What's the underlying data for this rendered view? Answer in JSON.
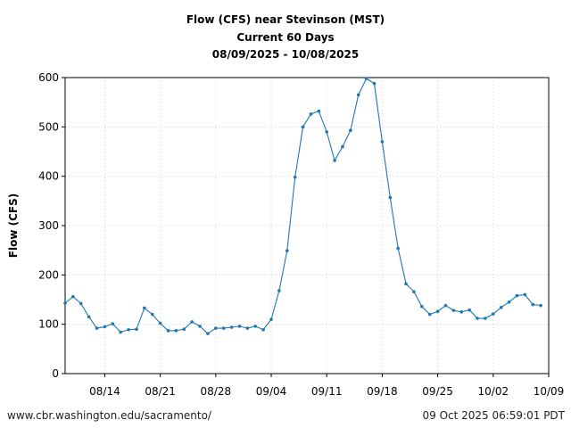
{
  "chart_data": {
    "type": "line",
    "title_lines": [
      "Flow (CFS) near Stevinson (MST)",
      "Current 60 Days",
      "08/09/2025 - 10/08/2025"
    ],
    "ylabel": "Flow (CFS)",
    "xlabel": "",
    "ylim": [
      0,
      600
    ],
    "yticks": [
      0,
      100,
      200,
      300,
      400,
      500,
      600
    ],
    "xlim": [
      "08/09/2025",
      "10/09/2025"
    ],
    "xticks": [
      {
        "date": "2025-08-14",
        "label": "08/14"
      },
      {
        "date": "2025-08-21",
        "label": "08/21"
      },
      {
        "date": "2025-08-28",
        "label": "08/28"
      },
      {
        "date": "2025-09-04",
        "label": "09/04"
      },
      {
        "date": "2025-09-11",
        "label": "09/11"
      },
      {
        "date": "2025-09-18",
        "label": "09/18"
      },
      {
        "date": "2025-09-25",
        "label": "09/25"
      },
      {
        "date": "2025-10-02",
        "label": "10/02"
      },
      {
        "date": "2025-10-09",
        "label": "10/09"
      }
    ],
    "grid": true,
    "line_color": "#1f77b4",
    "x": [
      "2025-08-09",
      "2025-08-10",
      "2025-08-11",
      "2025-08-12",
      "2025-08-13",
      "2025-08-14",
      "2025-08-15",
      "2025-08-16",
      "2025-08-17",
      "2025-08-18",
      "2025-08-19",
      "2025-08-20",
      "2025-08-21",
      "2025-08-22",
      "2025-08-23",
      "2025-08-24",
      "2025-08-25",
      "2025-08-26",
      "2025-08-27",
      "2025-08-28",
      "2025-08-29",
      "2025-08-30",
      "2025-08-31",
      "2025-09-01",
      "2025-09-02",
      "2025-09-03",
      "2025-09-04",
      "2025-09-05",
      "2025-09-06",
      "2025-09-07",
      "2025-09-08",
      "2025-09-09",
      "2025-09-10",
      "2025-09-11",
      "2025-09-12",
      "2025-09-13",
      "2025-09-14",
      "2025-09-15",
      "2025-09-16",
      "2025-09-17",
      "2025-09-18",
      "2025-09-19",
      "2025-09-20",
      "2025-09-21",
      "2025-09-22",
      "2025-09-23",
      "2025-09-24",
      "2025-09-25",
      "2025-09-26",
      "2025-09-27",
      "2025-09-28",
      "2025-09-29",
      "2025-09-30",
      "2025-10-01",
      "2025-10-02",
      "2025-10-03",
      "2025-10-04",
      "2025-10-05",
      "2025-10-06",
      "2025-10-07",
      "2025-10-08"
    ],
    "series": [
      {
        "values": [
          143,
          156,
          142,
          115,
          92,
          95,
          101,
          84,
          89,
          90,
          133,
          120,
          102,
          87,
          87,
          90,
          105,
          96,
          81,
          92,
          92,
          94,
          96,
          92,
          96,
          89,
          110,
          168,
          249,
          398,
          500,
          526,
          532,
          490,
          432,
          460,
          493,
          565,
          598,
          588,
          470,
          357,
          254,
          182,
          166,
          136,
          120,
          126,
          138,
          128,
          125,
          129,
          112,
          112,
          121,
          134,
          145,
          158,
          160,
          140,
          138
        ]
      }
    ]
  },
  "footer": {
    "source": "www.cbr.washington.edu/sacramento/",
    "timestamp": "09 Oct 2025 06:59:01 PDT"
  }
}
